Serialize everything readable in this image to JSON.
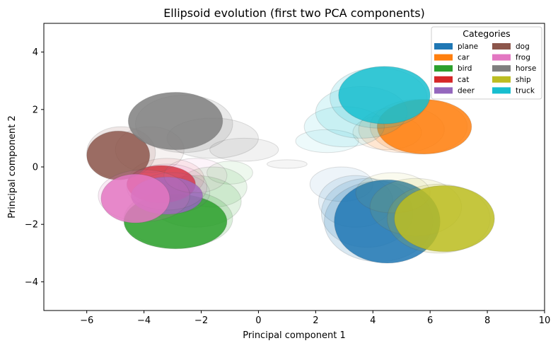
{
  "chart_data": {
    "type": "scatter",
    "title": "Ellipsoid evolution (first two PCA components)",
    "xlabel": "Principal component 1",
    "ylabel": "Principal component 2",
    "xlim": [
      -7.5,
      10
    ],
    "ylim": [
      -5,
      5
    ],
    "xticks": [
      -6,
      -4,
      -2,
      0,
      2,
      4,
      6,
      8,
      10
    ],
    "yticks": [
      -4,
      -2,
      0,
      2,
      4
    ],
    "grid": false,
    "legend": {
      "title": "Categories",
      "placement": "top-right",
      "columns": 2
    },
    "series": [
      {
        "name": "plane",
        "color": "#1f77b4",
        "ellipses": [
          {
            "cx": 2.9,
            "cy": -0.6,
            "rx": 1.1,
            "ry": 0.6
          },
          {
            "cx": 3.4,
            "cy": -1.2,
            "rx": 1.3,
            "ry": 0.9
          },
          {
            "cx": 3.8,
            "cy": -1.6,
            "rx": 1.6,
            "ry": 1.2
          },
          {
            "cx": 4.2,
            "cy": -1.9,
            "rx": 1.9,
            "ry": 1.4
          },
          {
            "cx": 4.5,
            "cy": -1.9,
            "rx": 1.85,
            "ry": 1.45
          }
        ]
      },
      {
        "name": "car",
        "color": "#ff7f0e",
        "ellipses": [
          {
            "cx": 4.5,
            "cy": 1.2,
            "rx": 1.2,
            "ry": 0.6
          },
          {
            "cx": 5.0,
            "cy": 1.3,
            "rx": 1.5,
            "ry": 0.8
          },
          {
            "cx": 5.6,
            "cy": 1.4,
            "rx": 1.7,
            "ry": 0.95
          },
          {
            "cx": 5.8,
            "cy": 1.4,
            "rx": 1.65,
            "ry": 0.95
          }
        ]
      },
      {
        "name": "bird",
        "color": "#2ca02c",
        "ellipses": [
          {
            "cx": -1.0,
            "cy": -0.2,
            "rx": 0.8,
            "ry": 0.4
          },
          {
            "cx": -1.6,
            "cy": -0.7,
            "rx": 1.2,
            "ry": 0.7
          },
          {
            "cx": -2.2,
            "cy": -1.2,
            "rx": 1.6,
            "ry": 0.9
          },
          {
            "cx": -2.8,
            "cy": -1.8,
            "rx": 1.9,
            "ry": 1.0
          },
          {
            "cx": -2.9,
            "cy": -1.9,
            "rx": 1.8,
            "ry": 0.95
          }
        ]
      },
      {
        "name": "cat",
        "color": "#d62728",
        "ellipses": [
          {
            "cx": -3.2,
            "cy": -0.4,
            "rx": 1.3,
            "ry": 0.7
          },
          {
            "cx": -3.4,
            "cy": -0.6,
            "rx": 1.2,
            "ry": 0.65
          }
        ]
      },
      {
        "name": "deer",
        "color": "#9467bd",
        "ellipses": [
          {
            "cx": -3.0,
            "cy": -0.9,
            "rx": 1.3,
            "ry": 0.7
          },
          {
            "cx": -3.2,
            "cy": -1.0,
            "rx": 1.25,
            "ry": 0.65
          }
        ]
      },
      {
        "name": "dog",
        "color": "#8c564b",
        "ellipses": [
          {
            "cx": -3.8,
            "cy": 0.6,
            "rx": 1.2,
            "ry": 0.8
          },
          {
            "cx": -4.8,
            "cy": 0.5,
            "rx": 1.2,
            "ry": 0.9
          },
          {
            "cx": -4.9,
            "cy": 0.4,
            "rx": 1.1,
            "ry": 0.85
          }
        ]
      },
      {
        "name": "frog",
        "color": "#e377c2",
        "ellipses": [
          {
            "cx": -2.2,
            "cy": -0.3,
            "rx": 1.1,
            "ry": 0.6
          },
          {
            "cx": -3.2,
            "cy": -0.7,
            "rx": 1.4,
            "ry": 0.8
          },
          {
            "cx": -4.0,
            "cy": -1.0,
            "rx": 1.6,
            "ry": 0.9
          },
          {
            "cx": -4.3,
            "cy": -1.1,
            "rx": 1.2,
            "ry": 0.85
          }
        ]
      },
      {
        "name": "horse",
        "color": "#7f7f7f",
        "ellipses": [
          {
            "cx": 1.0,
            "cy": 0.1,
            "rx": 0.7,
            "ry": 0.15
          },
          {
            "cx": -0.5,
            "cy": 0.6,
            "rx": 1.2,
            "ry": 0.4
          },
          {
            "cx": -1.6,
            "cy": 1.0,
            "rx": 1.6,
            "ry": 0.7
          },
          {
            "cx": -2.6,
            "cy": 1.5,
            "rx": 1.7,
            "ry": 1.0
          },
          {
            "cx": -2.9,
            "cy": 1.6,
            "rx": 1.65,
            "ry": 1.0
          }
        ]
      },
      {
        "name": "ship",
        "color": "#bcbd22",
        "ellipses": [
          {
            "cx": 4.7,
            "cy": -0.9,
            "rx": 1.3,
            "ry": 0.7
          },
          {
            "cx": 5.5,
            "cy": -1.4,
            "rx": 1.6,
            "ry": 1.0
          },
          {
            "cx": 6.3,
            "cy": -1.8,
            "rx": 1.8,
            "ry": 1.2
          },
          {
            "cx": 6.5,
            "cy": -1.8,
            "rx": 1.75,
            "ry": 1.15
          }
        ]
      },
      {
        "name": "truck",
        "color": "#17becf",
        "ellipses": [
          {
            "cx": 2.4,
            "cy": 0.9,
            "rx": 1.1,
            "ry": 0.4
          },
          {
            "cx": 3.0,
            "cy": 1.4,
            "rx": 1.4,
            "ry": 0.7
          },
          {
            "cx": 3.6,
            "cy": 1.9,
            "rx": 1.6,
            "ry": 0.9
          },
          {
            "cx": 4.2,
            "cy": 2.4,
            "rx": 1.7,
            "ry": 1.05
          },
          {
            "cx": 4.4,
            "cy": 2.5,
            "rx": 1.6,
            "ry": 1.0
          }
        ]
      }
    ]
  }
}
